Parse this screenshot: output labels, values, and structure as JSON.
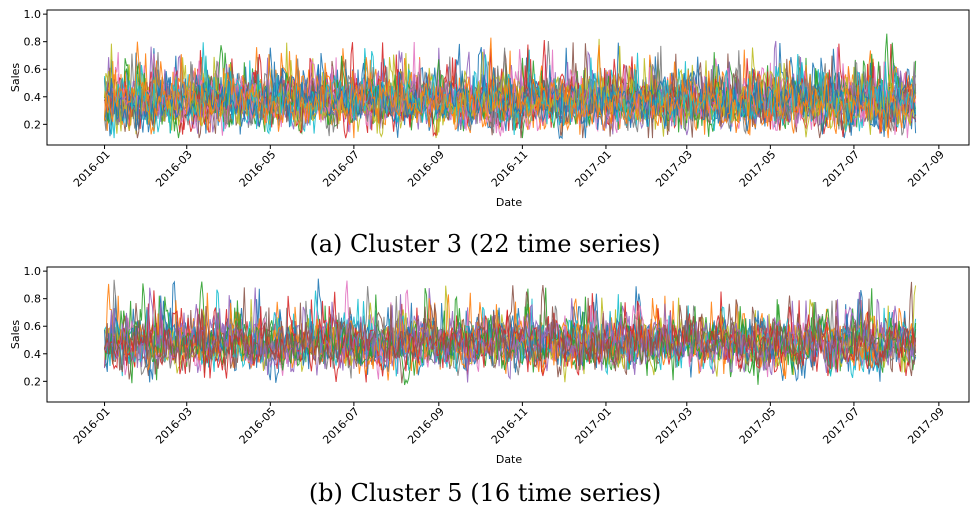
{
  "chart_data": [
    {
      "type": "line",
      "caption": "(a) Cluster 3 (22 time series)",
      "xlabel": "Date",
      "ylabel": "Sales",
      "x_ticks": [
        "2016-01",
        "2016-03",
        "2016-05",
        "2016-07",
        "2016-09",
        "2016-11",
        "2017-01",
        "2017-03",
        "2017-05",
        "2017-07",
        "2017-09"
      ],
      "y_ticks": [
        "0.2",
        "0.4",
        "0.6",
        "0.8",
        "1.0"
      ],
      "xlim": [
        "2015-11-20",
        "2017-09-23"
      ],
      "ylim": [
        0.05,
        1.03
      ],
      "x_range": [
        "2016-01-01",
        "2017-08-15"
      ],
      "series_count": 22,
      "mean": 0.36,
      "spread": 0.17,
      "floor": 0.1,
      "ceiling": 1.0,
      "seed": 3,
      "grid": false,
      "legend": "none"
    },
    {
      "type": "line",
      "caption": "(b) Cluster 5 (16 time series)",
      "xlabel": "Date",
      "ylabel": "Sales",
      "x_ticks": [
        "2016-01",
        "2016-03",
        "2016-05",
        "2016-07",
        "2016-09",
        "2016-11",
        "2017-01",
        "2017-03",
        "2017-05",
        "2017-07",
        "2017-09"
      ],
      "y_ticks": [
        "0.2",
        "0.4",
        "0.6",
        "0.8",
        "1.0"
      ],
      "xlim": [
        "2015-11-20",
        "2017-09-23"
      ],
      "ylim": [
        0.05,
        1.03
      ],
      "x_range": [
        "2016-01-01",
        "2017-08-15"
      ],
      "series_count": 16,
      "mean": 0.47,
      "spread": 0.17,
      "floor": 0.1,
      "ceiling": 1.0,
      "seed": 5,
      "grid": false,
      "legend": "none"
    }
  ],
  "colors": [
    "#1f77b4",
    "#ff7f0e",
    "#2ca02c",
    "#d62728",
    "#9467bd",
    "#8c564b",
    "#e377c2",
    "#7f7f7f",
    "#bcbd22",
    "#17becf"
  ]
}
